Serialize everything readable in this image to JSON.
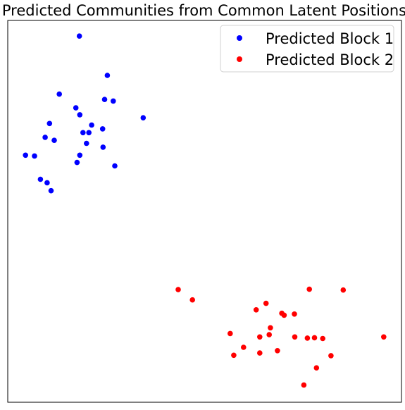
{
  "chart_data": {
    "type": "scatter",
    "title": "Predicted Communities from Common Latent Positions",
    "xlabel": "",
    "ylabel": "",
    "xlim": [
      0,
      100
    ],
    "ylim": [
      0,
      100
    ],
    "grid": false,
    "axis_ticks": false,
    "legend_position": "top-right",
    "series": [
      {
        "name": "Predicted Block 1",
        "color": "#0000ff",
        "points": [
          [
            18.2,
            95.9
          ],
          [
            25.3,
            85.6
          ],
          [
            13.1,
            80.7
          ],
          [
            24.6,
            79.3
          ],
          [
            26.8,
            78.9
          ],
          [
            17.3,
            77.1
          ],
          [
            18.3,
            75.3
          ],
          [
            34.4,
            74.5
          ],
          [
            10.6,
            73.0
          ],
          [
            21.3,
            72.6
          ],
          [
            24.1,
            71.6
          ],
          [
            19.1,
            70.6
          ],
          [
            20.6,
            70.6
          ],
          [
            9.5,
            69.4
          ],
          [
            11.8,
            68.6
          ],
          [
            20.0,
            67.8
          ],
          [
            24.2,
            66.8
          ],
          [
            4.5,
            64.7
          ],
          [
            6.8,
            64.5
          ],
          [
            18.3,
            64.7
          ],
          [
            17.6,
            62.8
          ],
          [
            27.2,
            61.9
          ],
          [
            10.0,
            57.5
          ],
          [
            8.3,
            58.4
          ],
          [
            11.0,
            55.4
          ]
        ]
      },
      {
        "name": "Predicted Block 2",
        "color": "#ff0000",
        "points": [
          [
            43.3,
            29.5
          ],
          [
            76.6,
            29.6
          ],
          [
            85.2,
            29.4
          ],
          [
            46.9,
            26.8
          ],
          [
            65.6,
            25.9
          ],
          [
            63.1,
            24.2
          ],
          [
            69.6,
            23.3
          ],
          [
            70.2,
            22.8
          ],
          [
            72.8,
            23.1
          ],
          [
            66.7,
            19.5
          ],
          [
            56.5,
            18.0
          ],
          [
            66.4,
            17.7
          ],
          [
            64.0,
            17.1
          ],
          [
            72.9,
            17.1
          ],
          [
            76.1,
            16.8
          ],
          [
            77.9,
            16.9
          ],
          [
            80.0,
            16.7
          ],
          [
            95.5,
            17.1
          ],
          [
            59.9,
            14.4
          ],
          [
            68.5,
            13.5
          ],
          [
            64.0,
            12.9
          ],
          [
            57.4,
            12.3
          ],
          [
            82.1,
            12.2
          ],
          [
            78.4,
            9.0
          ],
          [
            75.2,
            4.5
          ]
        ]
      }
    ]
  }
}
